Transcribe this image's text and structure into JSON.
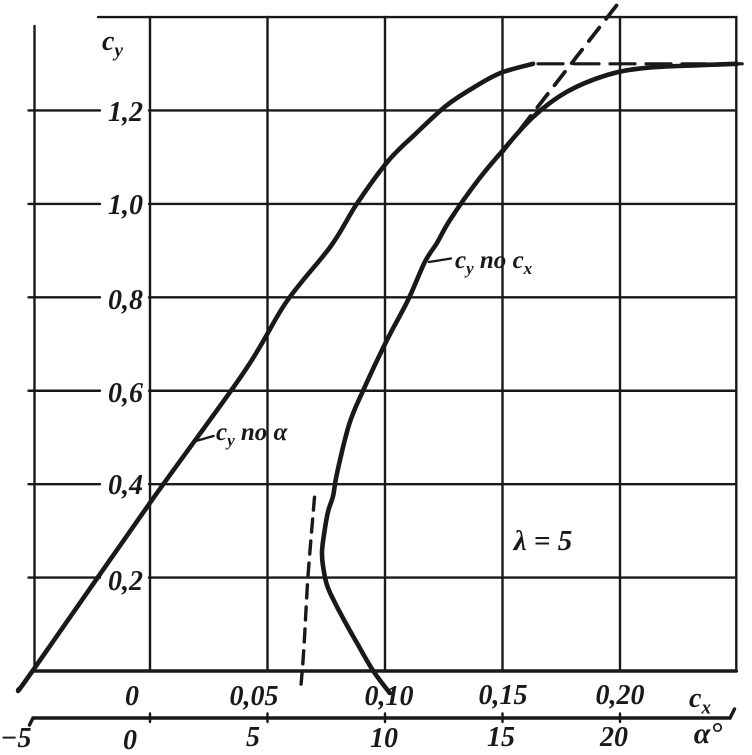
{
  "figure": {
    "ink": "#191919",
    "background": "#ffffff"
  },
  "chart_data": {
    "type": "line",
    "grid": true,
    "annotation_lambda": "λ = 5",
    "cy_max": 1.3,
    "y_axis": {
      "title_main": "c",
      "title_sub": "y",
      "min": 0,
      "max": 1.4,
      "grid_step": 0.2,
      "ticks": [
        "1,2",
        "1,0",
        "0,8",
        "0,6",
        "0,4",
        "0,2"
      ],
      "tick_values": [
        1.2,
        1.0,
        0.8,
        0.6,
        0.4,
        0.2
      ]
    },
    "x_axis_cx": {
      "title_main": "c",
      "title_sub": "x",
      "min": -0.05,
      "max": 0.25,
      "grid_step": 0.05,
      "ticks": [
        "0",
        "0,05",
        "0,10",
        "0,15",
        "0,20"
      ],
      "tick_values": [
        0,
        0.05,
        0.1,
        0.15,
        0.2
      ]
    },
    "x_axis_alpha": {
      "title": "α°",
      "min": -5,
      "max": 25,
      "grid_step": 5,
      "ticks": [
        "−5",
        "0",
        "5",
        "10",
        "15",
        "20"
      ],
      "tick_values": [
        -5,
        0,
        5,
        10,
        15,
        20
      ]
    },
    "labels": {
      "lambda": "λ = 5",
      "curve_alpha_main": "c",
      "curve_alpha_sub": "y",
      "curve_alpha_rest": " по α",
      "curve_cx_m1": "c",
      "curve_cx_s1": "y",
      "curve_cx_mid": " по ",
      "curve_cx_m2": "c",
      "curve_cx_s2": "x"
    },
    "series": [
      {
        "name": "cy_vs_alpha",
        "label": "cy по α",
        "x_axis": "alpha_deg",
        "style": "solid",
        "x": [
          -5.6,
          -5.0,
          0.0,
          4.0,
          5.8,
          7.7,
          8.8,
          10.1,
          11.3,
          12.6,
          13.8,
          14.9,
          16.3
        ],
        "y": [
          -0.04,
          0.0,
          0.36,
          0.64,
          0.79,
          0.91,
          1.0,
          1.09,
          1.15,
          1.21,
          1.25,
          1.28,
          1.3
        ]
      },
      {
        "name": "cy_vs_cx",
        "label": "cy по cx",
        "x_axis": "cx",
        "style": "solid",
        "x": [
          0.102,
          0.095,
          0.0885,
          0.0826,
          0.0783,
          0.0753,
          0.0736,
          0.0732,
          0.074,
          0.0757,
          0.0779,
          0.0796,
          0.0847,
          0.0902,
          0.1009,
          0.1098,
          0.117,
          0.1221,
          0.1277,
          0.1396,
          0.1502,
          0.163,
          0.1774,
          0.1945,
          0.2106,
          0.234,
          0.2498
        ],
        "y": [
          -0.047,
          0.0,
          0.056,
          0.109,
          0.15,
          0.184,
          0.225,
          0.255,
          0.291,
          0.34,
          0.375,
          0.424,
          0.527,
          0.595,
          0.709,
          0.794,
          0.876,
          0.916,
          0.966,
          1.051,
          1.115,
          1.186,
          1.24,
          1.276,
          1.291,
          1.297,
          1.3
        ]
      },
      {
        "name": "cy_vs_cx_lower_extension",
        "label": "polar extension to zero lift (dashed)",
        "x_axis": "cx",
        "style": "dashed",
        "x": [
          0.07,
          0.0672,
          0.0655,
          0.0643
        ],
        "y": [
          0.372,
          0.2,
          0.05,
          -0.028
        ]
      },
      {
        "name": "cy_vs_cx_upper_extension",
        "label": "polar extension above stall (dashed)",
        "x_axis": "cx",
        "style": "dashed",
        "smooth": false,
        "x": [
          0.1502,
          0.2004
        ],
        "y": [
          1.112,
          1.437
        ]
      },
      {
        "name": "cy_max_line",
        "label": "cy max level (dashed)",
        "x_axis": "cx",
        "style": "dashed",
        "smooth": false,
        "x": [
          0.1651,
          0.252
        ],
        "y": [
          1.3,
          1.3
        ]
      }
    ]
  }
}
